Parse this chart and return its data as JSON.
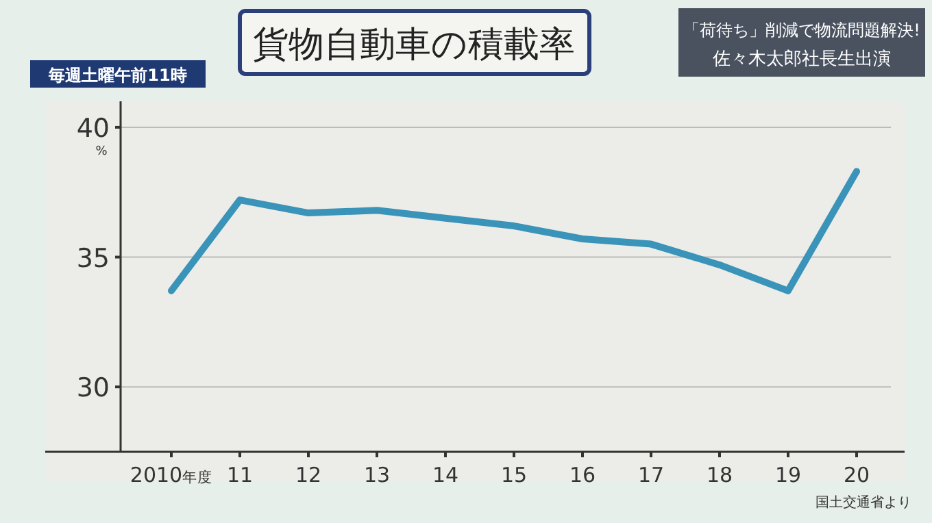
{
  "chart_data": {
    "type": "line",
    "title": "貨物自動車の積載率",
    "ylabel": "%",
    "annotations": [
      "毎週土曜午前11時",
      "「荷待ち」削減で物流問題解決!",
      "佐々木太郎社長生出演",
      "国土交通省より"
    ],
    "categories": [
      "2010$_{年度}$",
      "11",
      "12",
      "13",
      "14",
      "15",
      "16",
      "17",
      "18",
      "19",
      "20"
    ],
    "series": [
      {
        "color": "#3a93b8",
        "values": [
          33.7,
          37.2,
          36.7,
          36.8,
          36.5,
          36.2,
          35.7,
          35.5,
          34.7,
          33.7,
          38.3
        ]
      }
    ],
    "ylim": [
      27.5,
      41
    ],
    "yticks": [
      30,
      35,
      40
    ],
    "grid": "y",
    "marker": "none",
    "line_style": "solid"
  }
}
